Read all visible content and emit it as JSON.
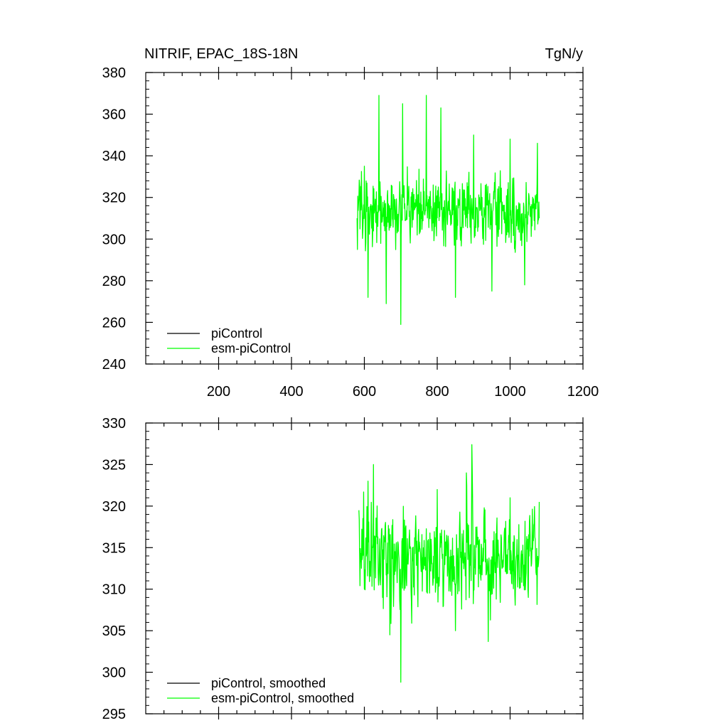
{
  "chart_data": [
    {
      "type": "line",
      "title": "NITRIF, EPAC_18S-18N",
      "units": "TgN/y",
      "xlim": [
        0,
        1200
      ],
      "ylim": [
        240,
        380
      ],
      "xticks": [
        "200",
        "400",
        "600",
        "800",
        "1000",
        "1200"
      ],
      "yticks": [
        "240",
        "260",
        "280",
        "300",
        "320",
        "340",
        "360",
        "380"
      ],
      "legend_position": "bottom-left",
      "series": [
        {
          "name": "piControl",
          "color": "#000000",
          "x_range": [],
          "points": []
        },
        {
          "name": "esm-piControl",
          "color": "#00ff00",
          "x_range": [
            580,
            1080
          ],
          "mean": 313,
          "sample_points": [
            [
              580,
              310
            ],
            [
              600,
              335
            ],
            [
              610,
              272
            ],
            [
              640,
              369
            ],
            [
              660,
              269
            ],
            [
              700,
              259
            ],
            [
              705,
              365
            ],
            [
              770,
              369
            ],
            [
              810,
              363
            ],
            [
              850,
              272
            ],
            [
              900,
              350
            ],
            [
              950,
              275
            ],
            [
              1000,
              348
            ],
            [
              1040,
              278
            ],
            [
              1075,
              346
            ],
            [
              1080,
              310
            ]
          ]
        }
      ]
    },
    {
      "type": "line",
      "title": "",
      "xlim": [
        0,
        1200
      ],
      "ylim": [
        295,
        330
      ],
      "yticks": [
        "295",
        "300",
        "305",
        "310",
        "315",
        "320",
        "325",
        "330"
      ],
      "legend_position": "bottom-left",
      "series": [
        {
          "name": "piControl, smoothed",
          "color": "#000000",
          "x_range": [],
          "points": []
        },
        {
          "name": "esm-piControl, smoothed",
          "color": "#00ff00",
          "x_range": [
            585,
            1080
          ],
          "mean": 314,
          "sample_points": [
            [
              585,
              319.5
            ],
            [
              600,
              310
            ],
            [
              610,
              323
            ],
            [
              625,
              325
            ],
            [
              650,
              309
            ],
            [
              670,
              304.5
            ],
            [
              700,
              298.8
            ],
            [
              720,
              313
            ],
            [
              800,
              322
            ],
            [
              850,
              305
            ],
            [
              880,
              324
            ],
            [
              895,
              327.4
            ],
            [
              940,
              303.7
            ],
            [
              1000,
              321
            ],
            [
              1050,
              309
            ],
            [
              1080,
              320.5
            ]
          ]
        }
      ]
    }
  ]
}
